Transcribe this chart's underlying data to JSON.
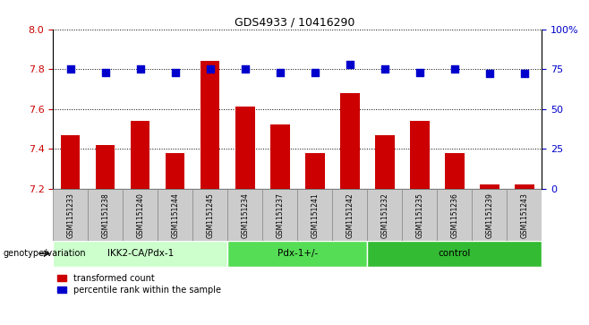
{
  "title": "GDS4933 / 10416290",
  "samples": [
    "GSM1151233",
    "GSM1151238",
    "GSM1151240",
    "GSM1151244",
    "GSM1151245",
    "GSM1151234",
    "GSM1151237",
    "GSM1151241",
    "GSM1151242",
    "GSM1151232",
    "GSM1151235",
    "GSM1151236",
    "GSM1151239",
    "GSM1151243"
  ],
  "transformed_count": [
    7.47,
    7.42,
    7.54,
    7.38,
    7.84,
    7.61,
    7.52,
    7.38,
    7.68,
    7.47,
    7.54,
    7.38,
    7.22,
    7.22
  ],
  "percentile_rank": [
    75,
    73,
    75,
    73,
    75,
    75,
    73,
    73,
    78,
    75,
    73,
    75,
    72,
    72
  ],
  "groups": [
    {
      "label": "IKK2-CA/Pdx-1",
      "start": 0,
      "end": 5,
      "color": "#ccffcc"
    },
    {
      "label": "Pdx-1+/-",
      "start": 5,
      "end": 9,
      "color": "#55dd55"
    },
    {
      "label": "control",
      "start": 9,
      "end": 14,
      "color": "#33bb33"
    }
  ],
  "ylim_left": [
    7.2,
    8.0
  ],
  "ylim_right": [
    0,
    100
  ],
  "yticks_left": [
    7.2,
    7.4,
    7.6,
    7.8,
    8.0
  ],
  "yticks_right": [
    0,
    25,
    50,
    75,
    100
  ],
  "bar_color": "#cc0000",
  "dot_color": "#0000cc",
  "bar_width": 0.55,
  "dot_size": 30,
  "background_color": "#ffffff",
  "grid_color": "#000000",
  "left_tick_color": "#cc0000",
  "right_tick_color": "#0000cc",
  "genotype_label": "genotype/variation",
  "legend_bar_label": "transformed count",
  "legend_dot_label": "percentile rank within the sample",
  "base_value": 7.2,
  "sample_box_color": "#cccccc",
  "sample_box_edge": "#888888"
}
